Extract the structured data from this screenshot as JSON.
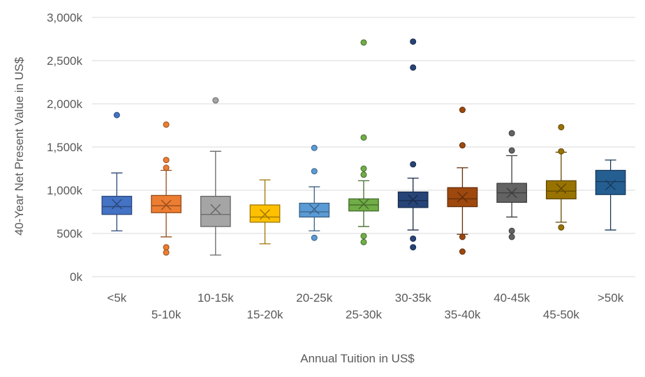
{
  "chart_data": {
    "type": "box",
    "title": "",
    "xlabel": "Annual Tuition in US$",
    "ylabel": "40-Year Net Present Value in US$",
    "ylim": [
      0,
      3000
    ],
    "y_unit": "thousand US$",
    "yticks": [
      0,
      500,
      1000,
      1500,
      2000,
      2500,
      3000
    ],
    "ytick_labels": [
      "0k",
      "500k",
      "1,000k",
      "1,500k",
      "2,000k",
      "2,500k",
      "3,000k"
    ],
    "gridlines": true,
    "categories": [
      "<5k",
      "5-10k",
      "10-15k",
      "15-20k",
      "20-25k",
      "25-30k",
      "30-35k",
      "35-40k",
      "40-45k",
      "45-50k",
      ">50k"
    ],
    "series": [
      {
        "name": "<5k",
        "color": "#4472C4",
        "whisker_low": 530,
        "q1": 720,
        "median": 810,
        "q3": 930,
        "whisker_high": 1200,
        "mean": 840,
        "outliers": [
          1870
        ]
      },
      {
        "name": "5-10k",
        "color": "#ED7D31",
        "whisker_low": 460,
        "q1": 740,
        "median": 820,
        "q3": 940,
        "whisker_high": 1230,
        "mean": 830,
        "outliers": [
          1760,
          1350,
          1260,
          340,
          280
        ]
      },
      {
        "name": "10-15k",
        "color": "#A5A5A5",
        "whisker_low": 250,
        "q1": 580,
        "median": 720,
        "q3": 930,
        "whisker_high": 1450,
        "mean": 780,
        "outliers": [
          2040
        ]
      },
      {
        "name": "15-20k",
        "color": "#FFC000",
        "whisker_low": 380,
        "q1": 630,
        "median": 690,
        "q3": 830,
        "whisker_high": 1120,
        "mean": 720,
        "outliers": []
      },
      {
        "name": "20-25k",
        "color": "#5B9BD5",
        "whisker_low": 530,
        "q1": 690,
        "median": 750,
        "q3": 850,
        "whisker_high": 1040,
        "mean": 780,
        "outliers": [
          1490,
          1220,
          450
        ]
      },
      {
        "name": "25-30k",
        "color": "#70AD47",
        "whisker_low": 580,
        "q1": 760,
        "median": 830,
        "q3": 900,
        "whisker_high": 1110,
        "mean": 840,
        "outliers": [
          2710,
          1610,
          1250,
          1180,
          470,
          400
        ]
      },
      {
        "name": "30-35k",
        "color": "#264478",
        "whisker_low": 540,
        "q1": 800,
        "median": 880,
        "q3": 980,
        "whisker_high": 1140,
        "mean": 890,
        "outliers": [
          2720,
          2420,
          1300,
          440,
          340
        ]
      },
      {
        "name": "35-40k",
        "color": "#9E480E",
        "whisker_low": 490,
        "q1": 810,
        "median": 900,
        "q3": 1030,
        "whisker_high": 1260,
        "mean": 920,
        "outliers": [
          1930,
          1520,
          460,
          290
        ]
      },
      {
        "name": "40-45k",
        "color": "#636363",
        "whisker_low": 690,
        "q1": 860,
        "median": 970,
        "q3": 1080,
        "whisker_high": 1400,
        "mean": 970,
        "outliers": [
          1660,
          1460,
          530,
          460
        ]
      },
      {
        "name": "45-50k",
        "color": "#997300",
        "whisker_low": 630,
        "q1": 900,
        "median": 990,
        "q3": 1110,
        "whisker_high": 1440,
        "mean": 1020,
        "outliers": [
          1730,
          1450,
          570
        ]
      },
      {
        "name": ">50k",
        "color": "#255E91",
        "whisker_low": 540,
        "q1": 950,
        "median": 1100,
        "q3": 1230,
        "whisker_high": 1350,
        "mean": 1060,
        "outliers": []
      }
    ]
  }
}
